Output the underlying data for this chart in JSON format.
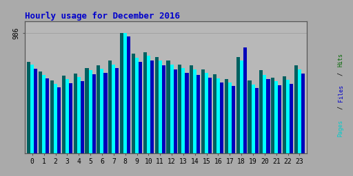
{
  "title": "Hourly usage for December 2016",
  "hours": [
    0,
    1,
    2,
    3,
    4,
    5,
    6,
    7,
    8,
    9,
    10,
    11,
    12,
    13,
    14,
    15,
    16,
    17,
    18,
    19,
    20,
    21,
    22,
    23
  ],
  "pages": [
    750,
    670,
    600,
    640,
    655,
    700,
    720,
    760,
    986,
    820,
    830,
    790,
    760,
    730,
    720,
    690,
    650,
    610,
    790,
    600,
    680,
    620,
    630,
    720
  ],
  "files": [
    730,
    645,
    570,
    610,
    625,
    680,
    695,
    730,
    986,
    785,
    800,
    760,
    730,
    700,
    690,
    660,
    615,
    580,
    760,
    565,
    645,
    590,
    605,
    690
  ],
  "hits": [
    695,
    615,
    540,
    575,
    595,
    650,
    660,
    700,
    960,
    750,
    760,
    720,
    690,
    660,
    645,
    620,
    580,
    550,
    870,
    535,
    610,
    558,
    568,
    655
  ],
  "pages_color": "#006060",
  "files_color": "#00ffff",
  "hits_color": "#0000bb",
  "bg_color": "#aaaaaa",
  "plot_bg_color": "#b8b8b8",
  "title_color": "#0000cc",
  "ylim": [
    0,
    1086
  ],
  "bar_width": 0.3,
  "ytick_val": 986,
  "right_label_pages_color": "#00cccc",
  "right_label_files_color": "#0000cc",
  "right_label_hits_color": "#008000"
}
